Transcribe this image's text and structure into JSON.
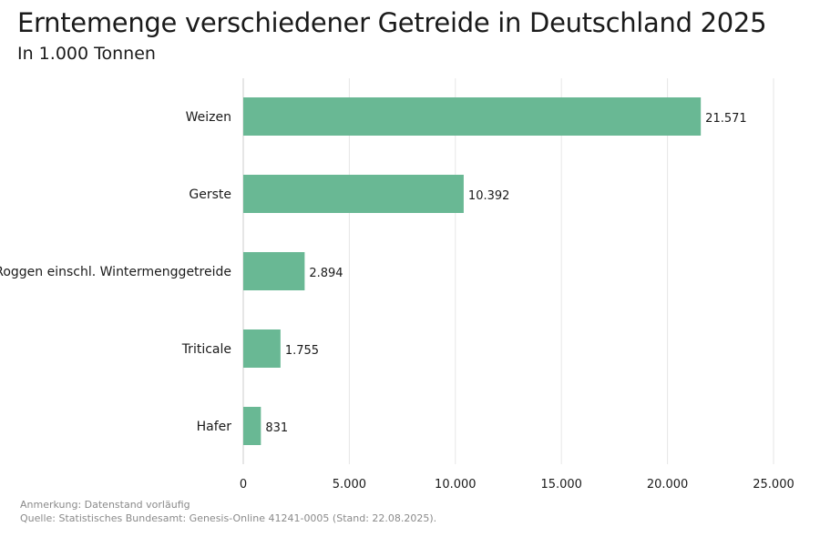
{
  "header": {
    "title": "Erntemenge verschiedener Getreide in Deutschland 2025",
    "subtitle": "In 1.000 Tonnen"
  },
  "footer": {
    "note": "Anmerkung: Datenstand vorläufig",
    "source": "Quelle: Statistisches Bundesamt: Genesis-Online 41241-0005 (Stand: 22.08.2025)."
  },
  "colors": {
    "bar": "#69b894",
    "grid": "#e6e6e6",
    "axis": "#cccccc",
    "text": "#1a1a1a"
  },
  "chart_data": {
    "type": "bar",
    "orientation": "horizontal",
    "title": "Erntemenge verschiedener Getreide in Deutschland 2025",
    "subtitle": "In 1.000 Tonnen",
    "categories": [
      "Weizen",
      "Gerste",
      "Roggen einschl. Wintermenggetreide",
      "Triticale",
      "Hafer"
    ],
    "values": [
      21571,
      10392,
      2894,
      1755,
      831
    ],
    "value_labels": [
      "21.571",
      "10.392",
      "2.894",
      "1.755",
      "831"
    ],
    "xlim": [
      0,
      25000
    ],
    "xticks": [
      0,
      5000,
      10000,
      15000,
      20000,
      25000
    ],
    "xtick_labels": [
      "0",
      "5.000",
      "10.000",
      "15.000",
      "20.000",
      "25.000"
    ],
    "xlabel": "",
    "ylabel": "",
    "grid": true
  }
}
